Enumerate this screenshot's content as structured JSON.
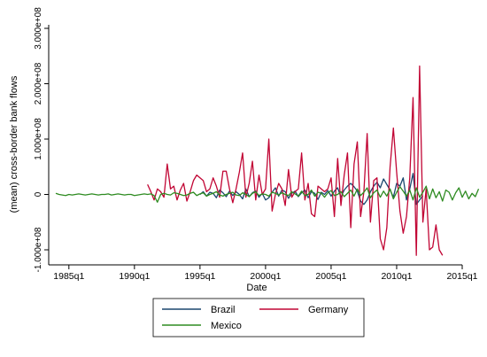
{
  "chart_data": {
    "type": "line",
    "xlabel": "Date",
    "ylabel": "(mean) cross-border bank flows",
    "xlim": [
      "1984q1",
      "2015q1"
    ],
    "ylim": [
      -100000000,
      300000000
    ],
    "grid": false,
    "legend_position": "bottom",
    "x_ticks": [
      "1985q1",
      "1990q1",
      "1995q1",
      "2000q1",
      "2005q1",
      "2010q1",
      "2015q1"
    ],
    "y_ticks": [
      {
        "value": -100000000,
        "label": "-1.000e+08"
      },
      {
        "value": 0,
        "label": "0"
      },
      {
        "value": 100000000,
        "label": "1.000e+08"
      },
      {
        "value": 200000000,
        "label": "2.000e+08"
      },
      {
        "value": 300000000,
        "label": "3.000e+08"
      }
    ],
    "series": [
      {
        "name": "Brazil",
        "color": "#1a476f",
        "start": "1995q1",
        "values": [
          0,
          5,
          -3,
          4,
          2,
          -6,
          8,
          3,
          -4,
          6,
          -2,
          5,
          0,
          -8,
          10,
          -4,
          3,
          6,
          -5,
          2,
          -10,
          -6,
          4,
          12,
          -3,
          8,
          5,
          -7,
          2,
          6,
          -4,
          3,
          8,
          -6,
          5,
          2,
          -9,
          4,
          0,
          7,
          -3,
          6,
          12,
          -5,
          8,
          15,
          20,
          14,
          6,
          -12,
          -18,
          -10,
          5,
          15,
          22,
          12,
          28,
          18,
          8,
          -5,
          20,
          15,
          30,
          -10,
          10,
          38,
          -18,
          -10,
          -2
        ]
      },
      {
        "name": "Germany",
        "color": "#c10534",
        "start": "1991q1",
        "values": [
          18,
          5,
          -10,
          10,
          5,
          -5,
          55,
          10,
          15,
          -10,
          8,
          20,
          -12,
          5,
          25,
          35,
          30,
          25,
          5,
          10,
          30,
          15,
          -5,
          42,
          42,
          10,
          -15,
          10,
          40,
          75,
          -5,
          20,
          60,
          -10,
          35,
          0,
          10,
          100,
          -30,
          0,
          20,
          10,
          -20,
          45,
          -5,
          5,
          10,
          75,
          -10,
          20,
          -35,
          -40,
          15,
          10,
          5,
          10,
          30,
          -40,
          65,
          -20,
          35,
          75,
          -60,
          55,
          95,
          -40,
          5,
          110,
          -50,
          25,
          30,
          -80,
          -100,
          -60,
          50,
          120,
          40,
          -30,
          -70,
          -40,
          30,
          175,
          -110,
          232,
          -50,
          10,
          -100,
          -95,
          -55,
          -100,
          -110
        ]
      },
      {
        "name": "Mexico",
        "color": "#2e8b21",
        "start": "1984q1",
        "values": [
          2,
          0,
          -1,
          -2,
          0,
          -1,
          0,
          1,
          0,
          -1,
          0,
          1,
          0,
          -1,
          0,
          0,
          1,
          -1,
          0,
          1,
          0,
          -1,
          0,
          0,
          -2,
          -1,
          0,
          1,
          0,
          1,
          -2,
          -14,
          0,
          2,
          0,
          -1,
          3,
          2,
          0,
          -2,
          -1,
          2,
          4,
          -2,
          1,
          3,
          -3,
          0,
          2,
          5,
          -1,
          -3,
          0,
          2,
          4,
          -1,
          -2,
          3,
          0,
          -4,
          2,
          5,
          -2,
          1,
          0,
          -3,
          4,
          2,
          -1,
          3,
          0,
          -2,
          5,
          1,
          -3,
          6,
          -2,
          0,
          8,
          -3,
          4,
          2,
          -5,
          3,
          7,
          -2,
          0,
          5,
          -4,
          2,
          8,
          -3,
          10,
          -2,
          4,
          12,
          -6,
          3,
          8,
          -5,
          6,
          -3,
          10,
          -8,
          4,
          14,
          6,
          -3,
          8,
          -10,
          12,
          -5,
          4,
          15,
          -8,
          10,
          -6,
          5,
          -12,
          8,
          4,
          -10,
          3,
          12,
          -5,
          6,
          -8,
          2,
          -4,
          10
        ]
      }
    ]
  }
}
